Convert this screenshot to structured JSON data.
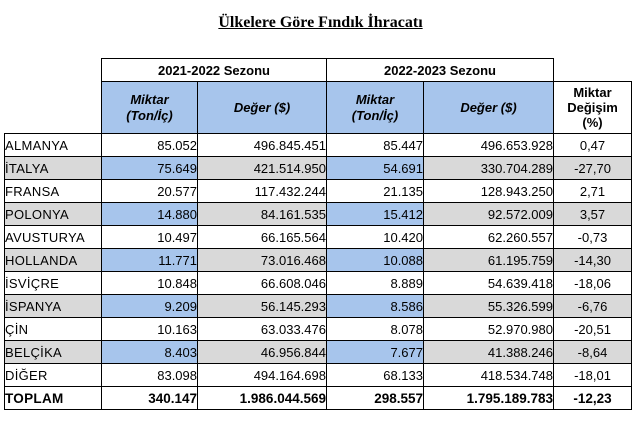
{
  "title": "Ülkelere Göre Fındık İhracatı",
  "seasons": [
    "2021-2022 Sezonu",
    "2022-2023 Sezonu"
  ],
  "headers": {
    "miktar_line1": "Miktar",
    "miktar_line2": "(Ton/İç)",
    "deger": "Değer ($)",
    "change_line1": "Miktar",
    "change_line2": "Değişim",
    "change_line3": "(%)"
  },
  "rows": [
    {
      "country": "ALMANYA",
      "m1": "85.052",
      "d1": "496.845.451",
      "m2": "85.447",
      "d2": "496.653.928",
      "pct": "0,47"
    },
    {
      "country": "İTALYA",
      "m1": "75.649",
      "d1": "421.514.950",
      "m2": "54.691",
      "d2": "330.704.289",
      "pct": "-27,70"
    },
    {
      "country": "FRANSA",
      "m1": "20.577",
      "d1": "117.432.244",
      "m2": "21.135",
      "d2": "128.943.250",
      "pct": "2,71"
    },
    {
      "country": "POLONYA",
      "m1": "14.880",
      "d1": "84.161.535",
      "m2": "15.412",
      "d2": "92.572.009",
      "pct": "3,57"
    },
    {
      "country": "AVUSTURYA",
      "m1": "10.497",
      "d1": "66.165.564",
      "m2": "10.420",
      "d2": "62.260.557",
      "pct": "-0,73"
    },
    {
      "country": "HOLLANDA",
      "m1": "11.771",
      "d1": "73.016.468",
      "m2": "10.088",
      "d2": "61.195.759",
      "pct": "-14,30"
    },
    {
      "country": "İSVİÇRE",
      "m1": "10.848",
      "d1": "66.608.046",
      "m2": "8.889",
      "d2": "54.639.418",
      "pct": "-18,06"
    },
    {
      "country": "İSPANYA",
      "m1": "9.209",
      "d1": "56.145.293",
      "m2": "8.586",
      "d2": "55.326.599",
      "pct": "-6,76"
    },
    {
      "country": "ÇİN",
      "m1": "10.163",
      "d1": "63.033.476",
      "m2": "8.078",
      "d2": "52.970.980",
      "pct": "-20,51"
    },
    {
      "country": "BELÇİKA",
      "m1": "8.403",
      "d1": "46.956.844",
      "m2": "7.677",
      "d2": "41.388.246",
      "pct": "-8,64"
    },
    {
      "country": "DİĞER",
      "m1": "83.098",
      "d1": "494.164.698",
      "m2": "68.133",
      "d2": "418.534.748",
      "pct": "-18,01"
    }
  ],
  "total": {
    "country": "TOPLAM",
    "m1": "340.147",
    "d1": "1.986.044.569",
    "m2": "298.557",
    "d2": "1.795.189.783",
    "pct": "-12,23"
  },
  "colors": {
    "header_blue": "#a7c5ec",
    "row_gray": "#d9d9d9"
  }
}
